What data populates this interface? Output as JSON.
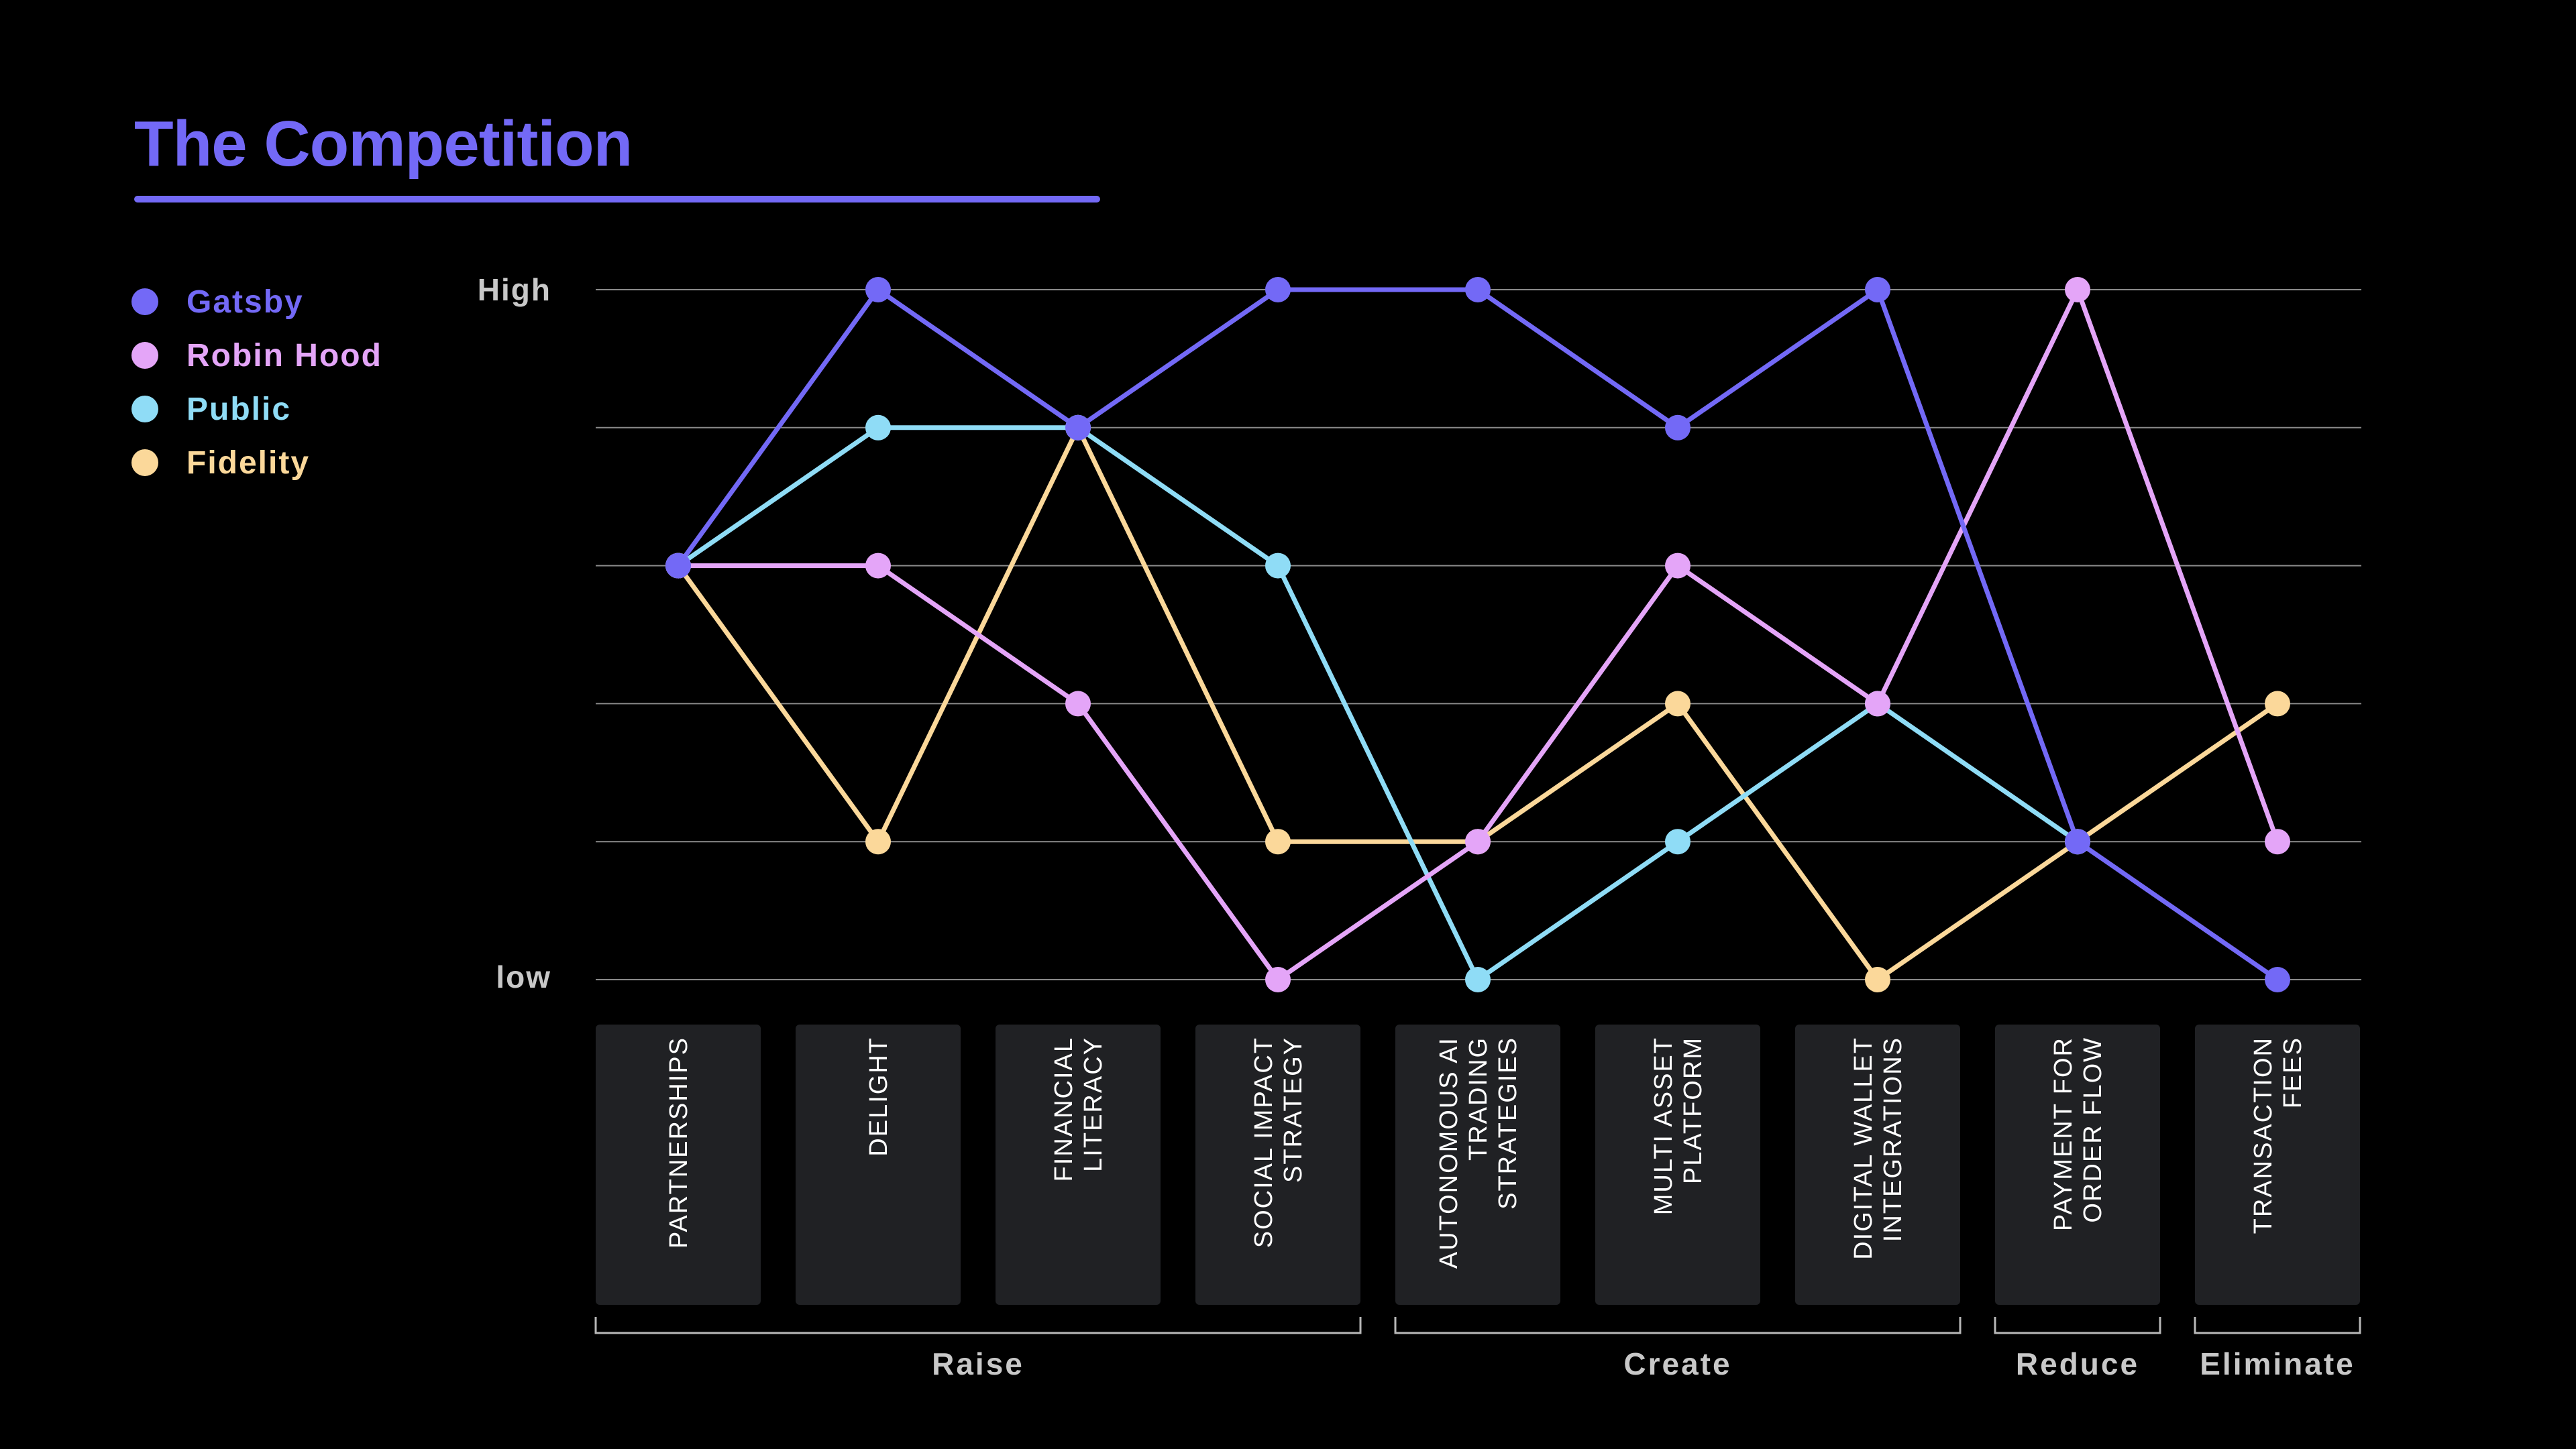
{
  "header": {
    "title": "The Competition"
  },
  "colors": {
    "background": "#000000",
    "accent": "#7369f6",
    "box": "#202124",
    "grid": "#8a8a8a"
  },
  "chart_data": {
    "type": "line",
    "title": "The Competition",
    "ytick_labels": {
      "high": "High",
      "low": "low"
    },
    "ylim": [
      0,
      5
    ],
    "grid": true,
    "legend_placement": "top-left",
    "categories": [
      "PARTNERSHIPS",
      "DELIGHT",
      "FINANCIAL LITERACY",
      "SOCIAL IMPACT STRATEGY",
      "AUTONOMOUS AI TRADING STRATEGIES",
      "MULTI ASSET PLATFORM",
      "DIGITAL WALLET INTEGRATIONS",
      "PAYMENT FOR ORDER FLOW",
      "TRANSACTION FEES"
    ],
    "category_lines": [
      [
        "PARTNERSHIPS"
      ],
      [
        "DELIGHT"
      ],
      [
        "FINANCIAL",
        "LITERACY"
      ],
      [
        "SOCIAL IMPACT",
        "STRATEGY"
      ],
      [
        "AUTONOMOUS AI",
        "TRADING",
        "STRATEGIES"
      ],
      [
        "MULTI ASSET",
        "PLATFORM"
      ],
      [
        "DIGITAL WALLET",
        "INTEGRATIONS"
      ],
      [
        "PAYMENT FOR",
        "ORDER FLOW"
      ],
      [
        "TRANSACTION",
        "FEES"
      ]
    ],
    "groups": [
      {
        "label": "Raise",
        "start": 0,
        "end": 3
      },
      {
        "label": "Create",
        "start": 4,
        "end": 6
      },
      {
        "label": "Reduce",
        "start": 7,
        "end": 7
      },
      {
        "label": "Eliminate",
        "start": 8,
        "end": 8
      }
    ],
    "series": [
      {
        "name": "Gatsby",
        "color": "#7369f6",
        "values": [
          3,
          5,
          4,
          5,
          5,
          4,
          5,
          1,
          0
        ]
      },
      {
        "name": "Robin Hood",
        "color": "#e4a5f8",
        "values": [
          3,
          3,
          2,
          0,
          1,
          3,
          2,
          5,
          1
        ]
      },
      {
        "name": "Public",
        "color": "#8fdcf6",
        "values": [
          3,
          4,
          4,
          3,
          0,
          1,
          2,
          1,
          null
        ]
      },
      {
        "name": "Fidelity",
        "color": "#fbd89a",
        "values": [
          3,
          1,
          4,
          1,
          1,
          2,
          0,
          1,
          2
        ]
      }
    ]
  }
}
